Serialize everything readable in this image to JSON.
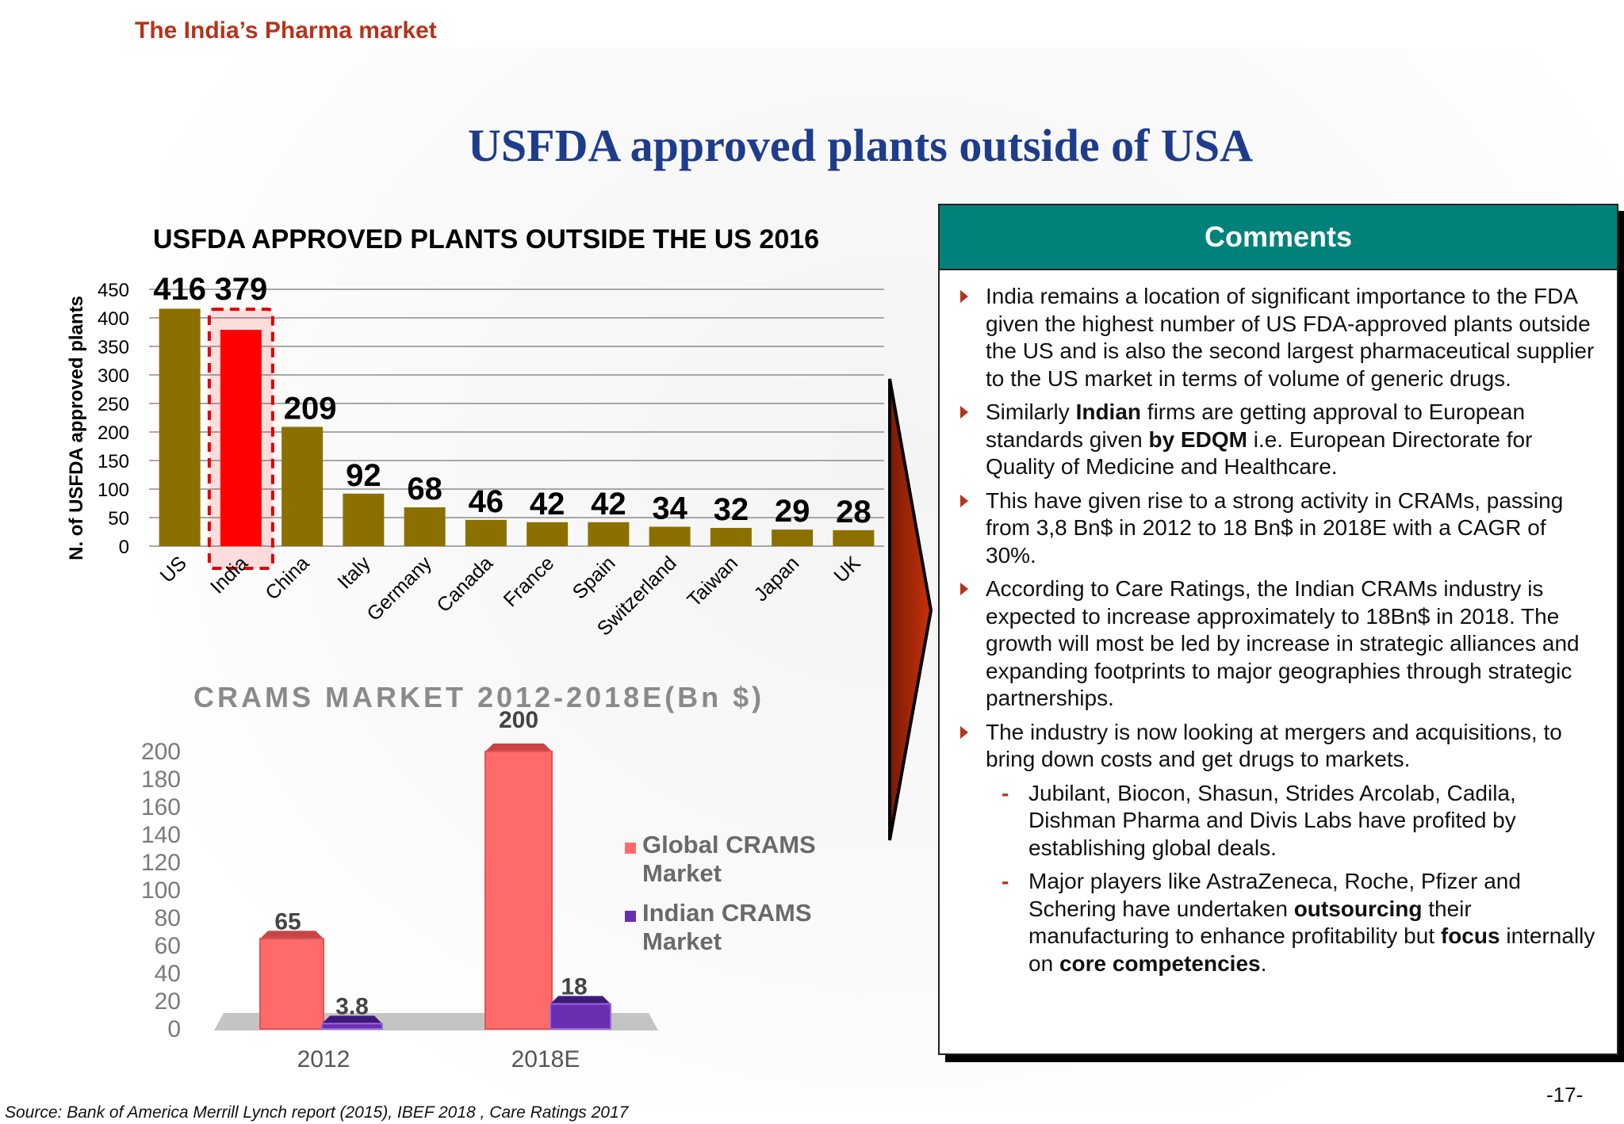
{
  "header": {
    "section": "The India’s Pharma market",
    "title": "USFDA approved plants outside of USA"
  },
  "chart_data": [
    {
      "type": "bar",
      "title": "USFDA APPROVED PLANTS OUTSIDE THE US 2016",
      "xlabel": "",
      "ylabel": "N. of USFDA approved plants",
      "categories": [
        "US",
        "India",
        "China",
        "Italy",
        "Germany",
        "Canada",
        "France",
        "Spain",
        "Switzerland",
        "Taiwan",
        "Japan",
        "UK"
      ],
      "values": [
        416,
        379,
        209,
        92,
        68,
        46,
        42,
        42,
        34,
        32,
        29,
        28
      ],
      "ylim": [
        0,
        450
      ],
      "yticks": [
        0,
        50,
        100,
        150,
        200,
        250,
        300,
        350,
        400,
        450
      ],
      "highlight": "India",
      "colors": {
        "bar": "#8b7000",
        "highlight": "#ff0000"
      },
      "grid": true
    },
    {
      "type": "bar",
      "title": "CRAMS MARKET 2012-2018E(Bn $)",
      "categories": [
        "2012",
        "2018E"
      ],
      "series": [
        {
          "name": "Global CRAMS Market",
          "values": [
            65,
            200
          ],
          "labels": [
            "65",
            "200"
          ],
          "color": "#ff6b6b"
        },
        {
          "name": "Indian CRAMS Market",
          "values": [
            3.8,
            18
          ],
          "labels": [
            "3.8",
            "18"
          ],
          "color": "#6a2fb0"
        }
      ],
      "ylim": [
        0,
        200
      ],
      "yticks": [
        0,
        20,
        40,
        60,
        80,
        100,
        120,
        140,
        160,
        180,
        200
      ],
      "legend": "right"
    }
  ],
  "comments": {
    "title": "Comments",
    "items": [
      {
        "type": "bullet",
        "parts": [
          {
            "t": "India remains a location of significant importance to the FDA given the highest number of US FDA-approved plants outside the US and is also the second largest pharmaceutical supplier to the US market in terms of volume of generic drugs."
          }
        ]
      },
      {
        "type": "bullet",
        "parts": [
          {
            "t": "Similarly "
          },
          {
            "t": "Indian",
            "b": true
          },
          {
            "t": " firms are getting  approval to European standards given "
          },
          {
            "t": "by EDQM",
            "b": true
          },
          {
            "t": " i.e. European Directorate  for Quality of Medicine and Healthcare."
          }
        ]
      },
      {
        "type": "bullet",
        "parts": [
          {
            "t": "This have given rise to a strong activity  in CRAMs, passing from 3,8 Bn$ in 2012 to 18 Bn$ in 2018E with a CAGR of 30%."
          }
        ]
      },
      {
        "type": "bullet",
        "parts": [
          {
            "t": "According to Care Ratings, the Indian CRAMs industry is expected to increase approximately to 18Bn$ in 2018. The growth will most be led by increase in strategic alliances and expanding footprints to major geographies through strategic partnerships."
          }
        ]
      },
      {
        "type": "bullet",
        "parts": [
          {
            "t": "The industry is now looking at mergers and acquisitions, to bring down costs and get drugs to markets."
          }
        ]
      },
      {
        "type": "sub",
        "parts": [
          {
            "t": "Jubilant, Biocon, Shasun, Strides Arcolab, Cadila, Dishman Pharma and Divis Labs have profited by establishing global deals."
          }
        ]
      },
      {
        "type": "sub",
        "parts": [
          {
            "t": "Major players like AstraZeneca, Roche, Pfizer and Schering have undertaken "
          },
          {
            "t": "outsourcing",
            "b": true
          },
          {
            "t": " their manufacturing to enhance profitability but "
          },
          {
            "t": "focus",
            "b": true
          },
          {
            "t": " internally on "
          },
          {
            "t": "core competencies",
            "b": true
          },
          {
            "t": "."
          }
        ]
      }
    ]
  },
  "footer": {
    "source": "Source: Bank of America Merrill Lynch report (2015), IBEF 2018 , Care Ratings 2017",
    "page": "-17-"
  },
  "colors": {
    "accent": "#b5331b",
    "title": "#1e3c8c",
    "comments_header": "#00827a",
    "arrow": "#b52a0a"
  }
}
